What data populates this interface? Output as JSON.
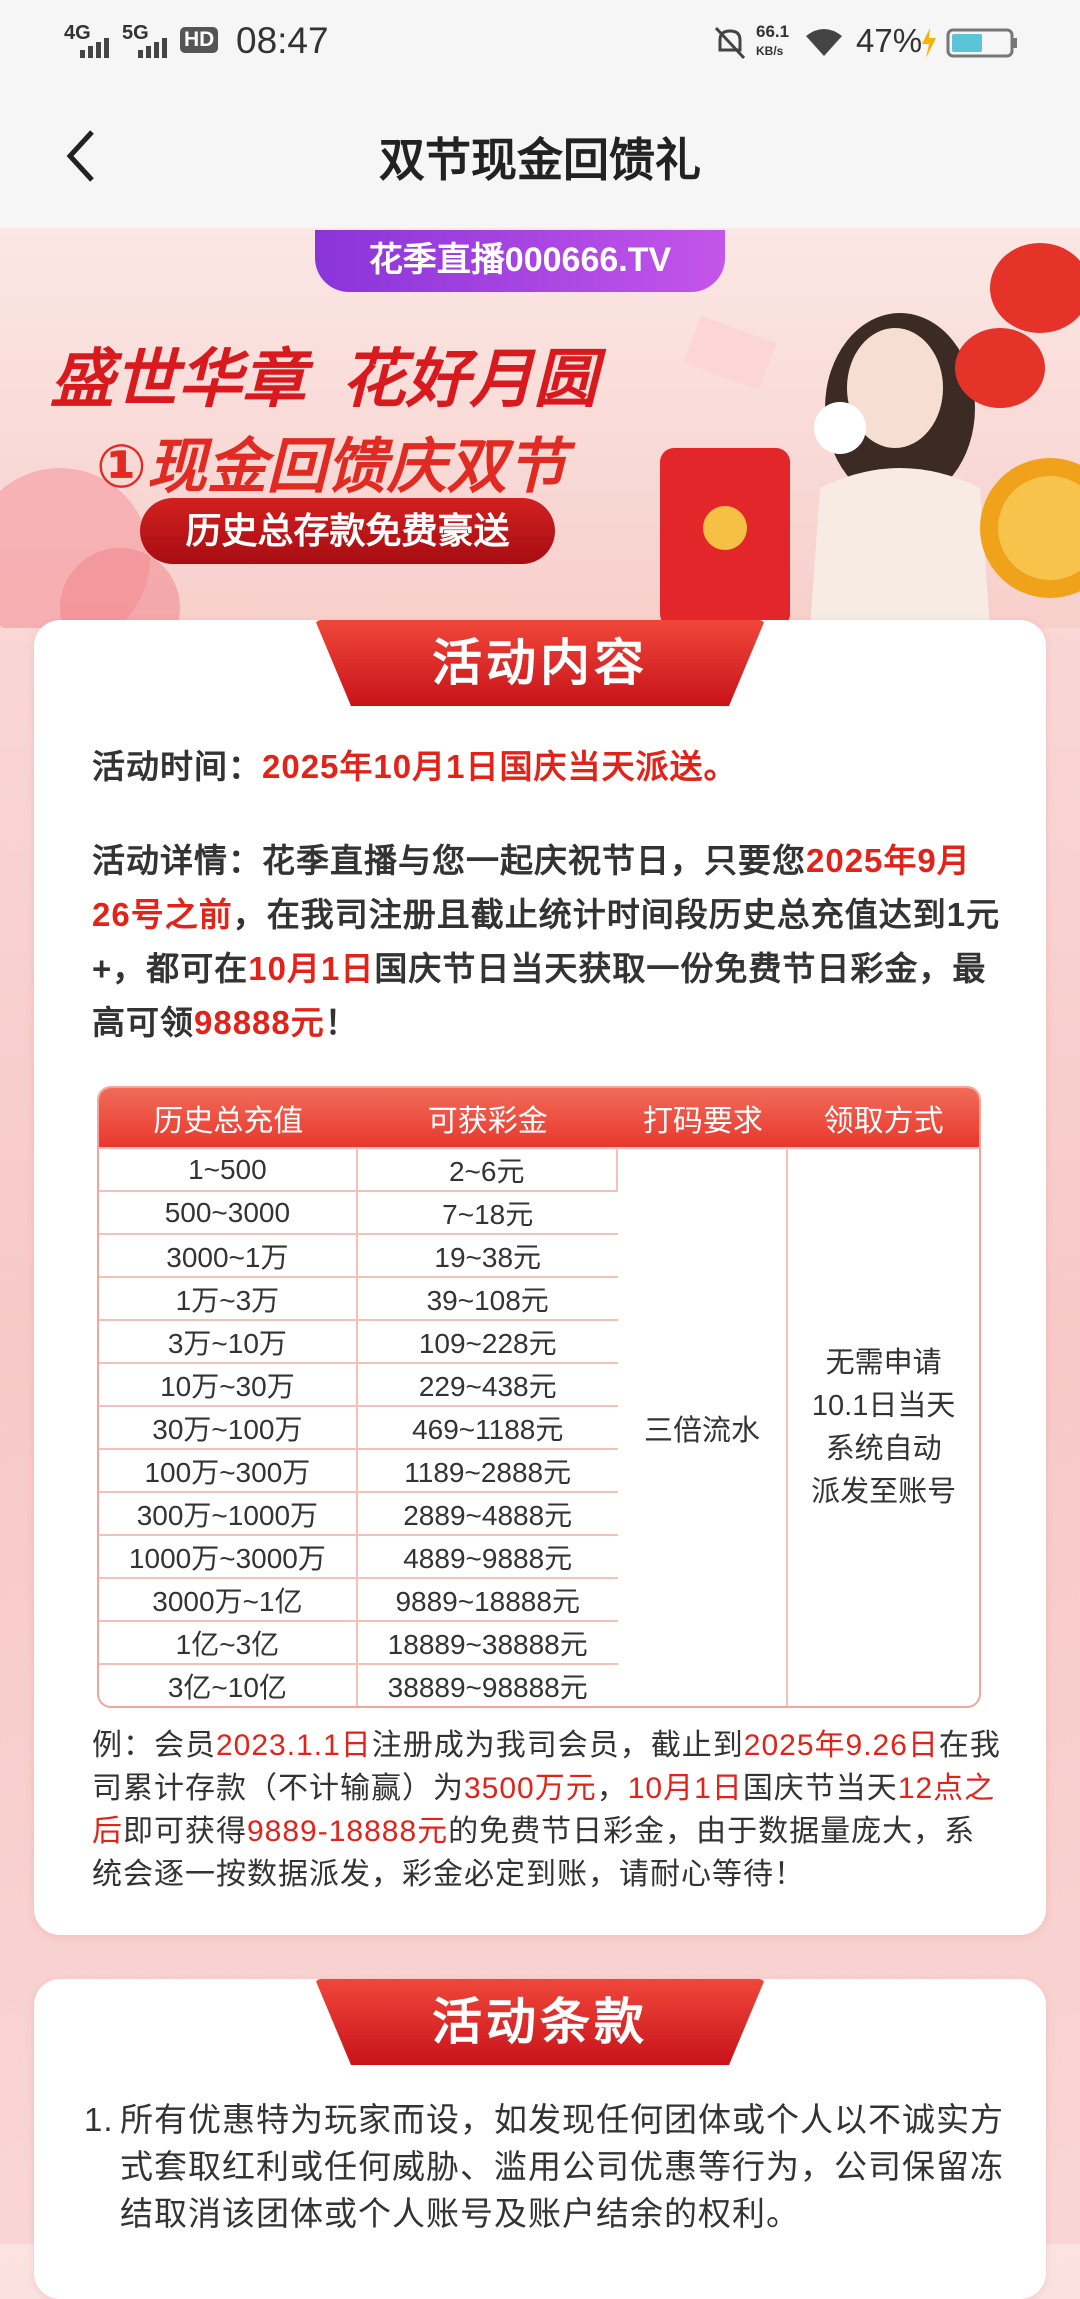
{
  "status_bar": {
    "network_1": "4G",
    "network_2": "5G",
    "hd": "HD",
    "time": "08:47",
    "speed": "66.1",
    "speed_unit": "KB/s",
    "battery": "47%"
  },
  "header": {
    "title": "双节现金回馈礼"
  },
  "banner": {
    "platform": "花季直播000666.TV",
    "headline": "盛世华章  花好月圆",
    "subheadline": "①现金回馈庆双节",
    "tag": "历史总存款免费豪送"
  },
  "section_1": {
    "title": "活动内容",
    "time": [
      {
        "text": "活动时间：",
        "red": false
      },
      {
        "text": "2025年10月1日国庆当天派送。",
        "red": true
      }
    ],
    "details": [
      {
        "text": "活动详情：",
        "red": false
      },
      {
        "text": "花季直播与您一起庆祝节日，只要您",
        "red": false
      },
      {
        "text": "2025年9月26号之前",
        "red": true
      },
      {
        "text": "，在我司注册且截止统计时间段历史总充值达到1元+，都可在",
        "red": false
      },
      {
        "text": "10月1日",
        "red": true
      },
      {
        "text": "国庆节日当天获取一份免费节日彩金，最高可领",
        "red": false
      },
      {
        "text": "98888元",
        "red": true
      },
      {
        "text": "！",
        "red": false
      }
    ],
    "table": {
      "headers": [
        "历史总充值",
        "可获彩金",
        "打码要求",
        "领取方式"
      ],
      "rows": [
        [
          "1~500",
          "2~6元"
        ],
        [
          "500~3000",
          "7~18元"
        ],
        [
          "3000~1万",
          "19~38元"
        ],
        [
          "1万~3万",
          "39~108元"
        ],
        [
          "3万~10万",
          "109~228元"
        ],
        [
          "10万~30万",
          "229~438元"
        ],
        [
          "30万~100万",
          "469~1188元"
        ],
        [
          "100万~300万",
          "1189~2888元"
        ],
        [
          "300万~1000万",
          "2889~4888元"
        ],
        [
          "1000万~3000万",
          "4889~9888元"
        ],
        [
          "3000万~1亿",
          "9889~18888元"
        ],
        [
          "1亿~3亿",
          "18889~38888元"
        ],
        [
          "3亿~10亿",
          "38889~98888元"
        ]
      ],
      "requirement": "三倍流水",
      "method": [
        "无需申请",
        "10.1日当天",
        "系统自动",
        "派发至账号"
      ]
    },
    "example": [
      {
        "text": "例：会员",
        "red": false
      },
      {
        "text": "2023.1.1日",
        "red": true
      },
      {
        "text": "注册成为我司会员，截止到",
        "red": false
      },
      {
        "text": "2025年9.26日",
        "red": true
      },
      {
        "text": "在我司累计存款（不计输赢）为",
        "red": false
      },
      {
        "text": "3500万元",
        "red": true
      },
      {
        "text": "，",
        "red": false
      },
      {
        "text": "10月1日",
        "red": true
      },
      {
        "text": "国庆节当天",
        "red": false
      },
      {
        "text": "12点之后",
        "red": true
      },
      {
        "text": "即可获得",
        "red": false
      },
      {
        "text": "9889-18888元",
        "red": true
      },
      {
        "text": "的免费节日彩金，由于数据量庞大，系统会逐一按数据派发，彩金必定到账，请耐心等待！",
        "red": false
      }
    ]
  },
  "section_2": {
    "title": "活动条款",
    "terms": [
      {
        "number": "1.",
        "text": "所有优惠特为玩家而设，如发现任何团体或个人以不诚实方式套取红利或任何威胁、滥用公司优惠等行为，公司保留冻结取消该团体或个人账号及账户结余的权利。"
      }
    ]
  }
}
